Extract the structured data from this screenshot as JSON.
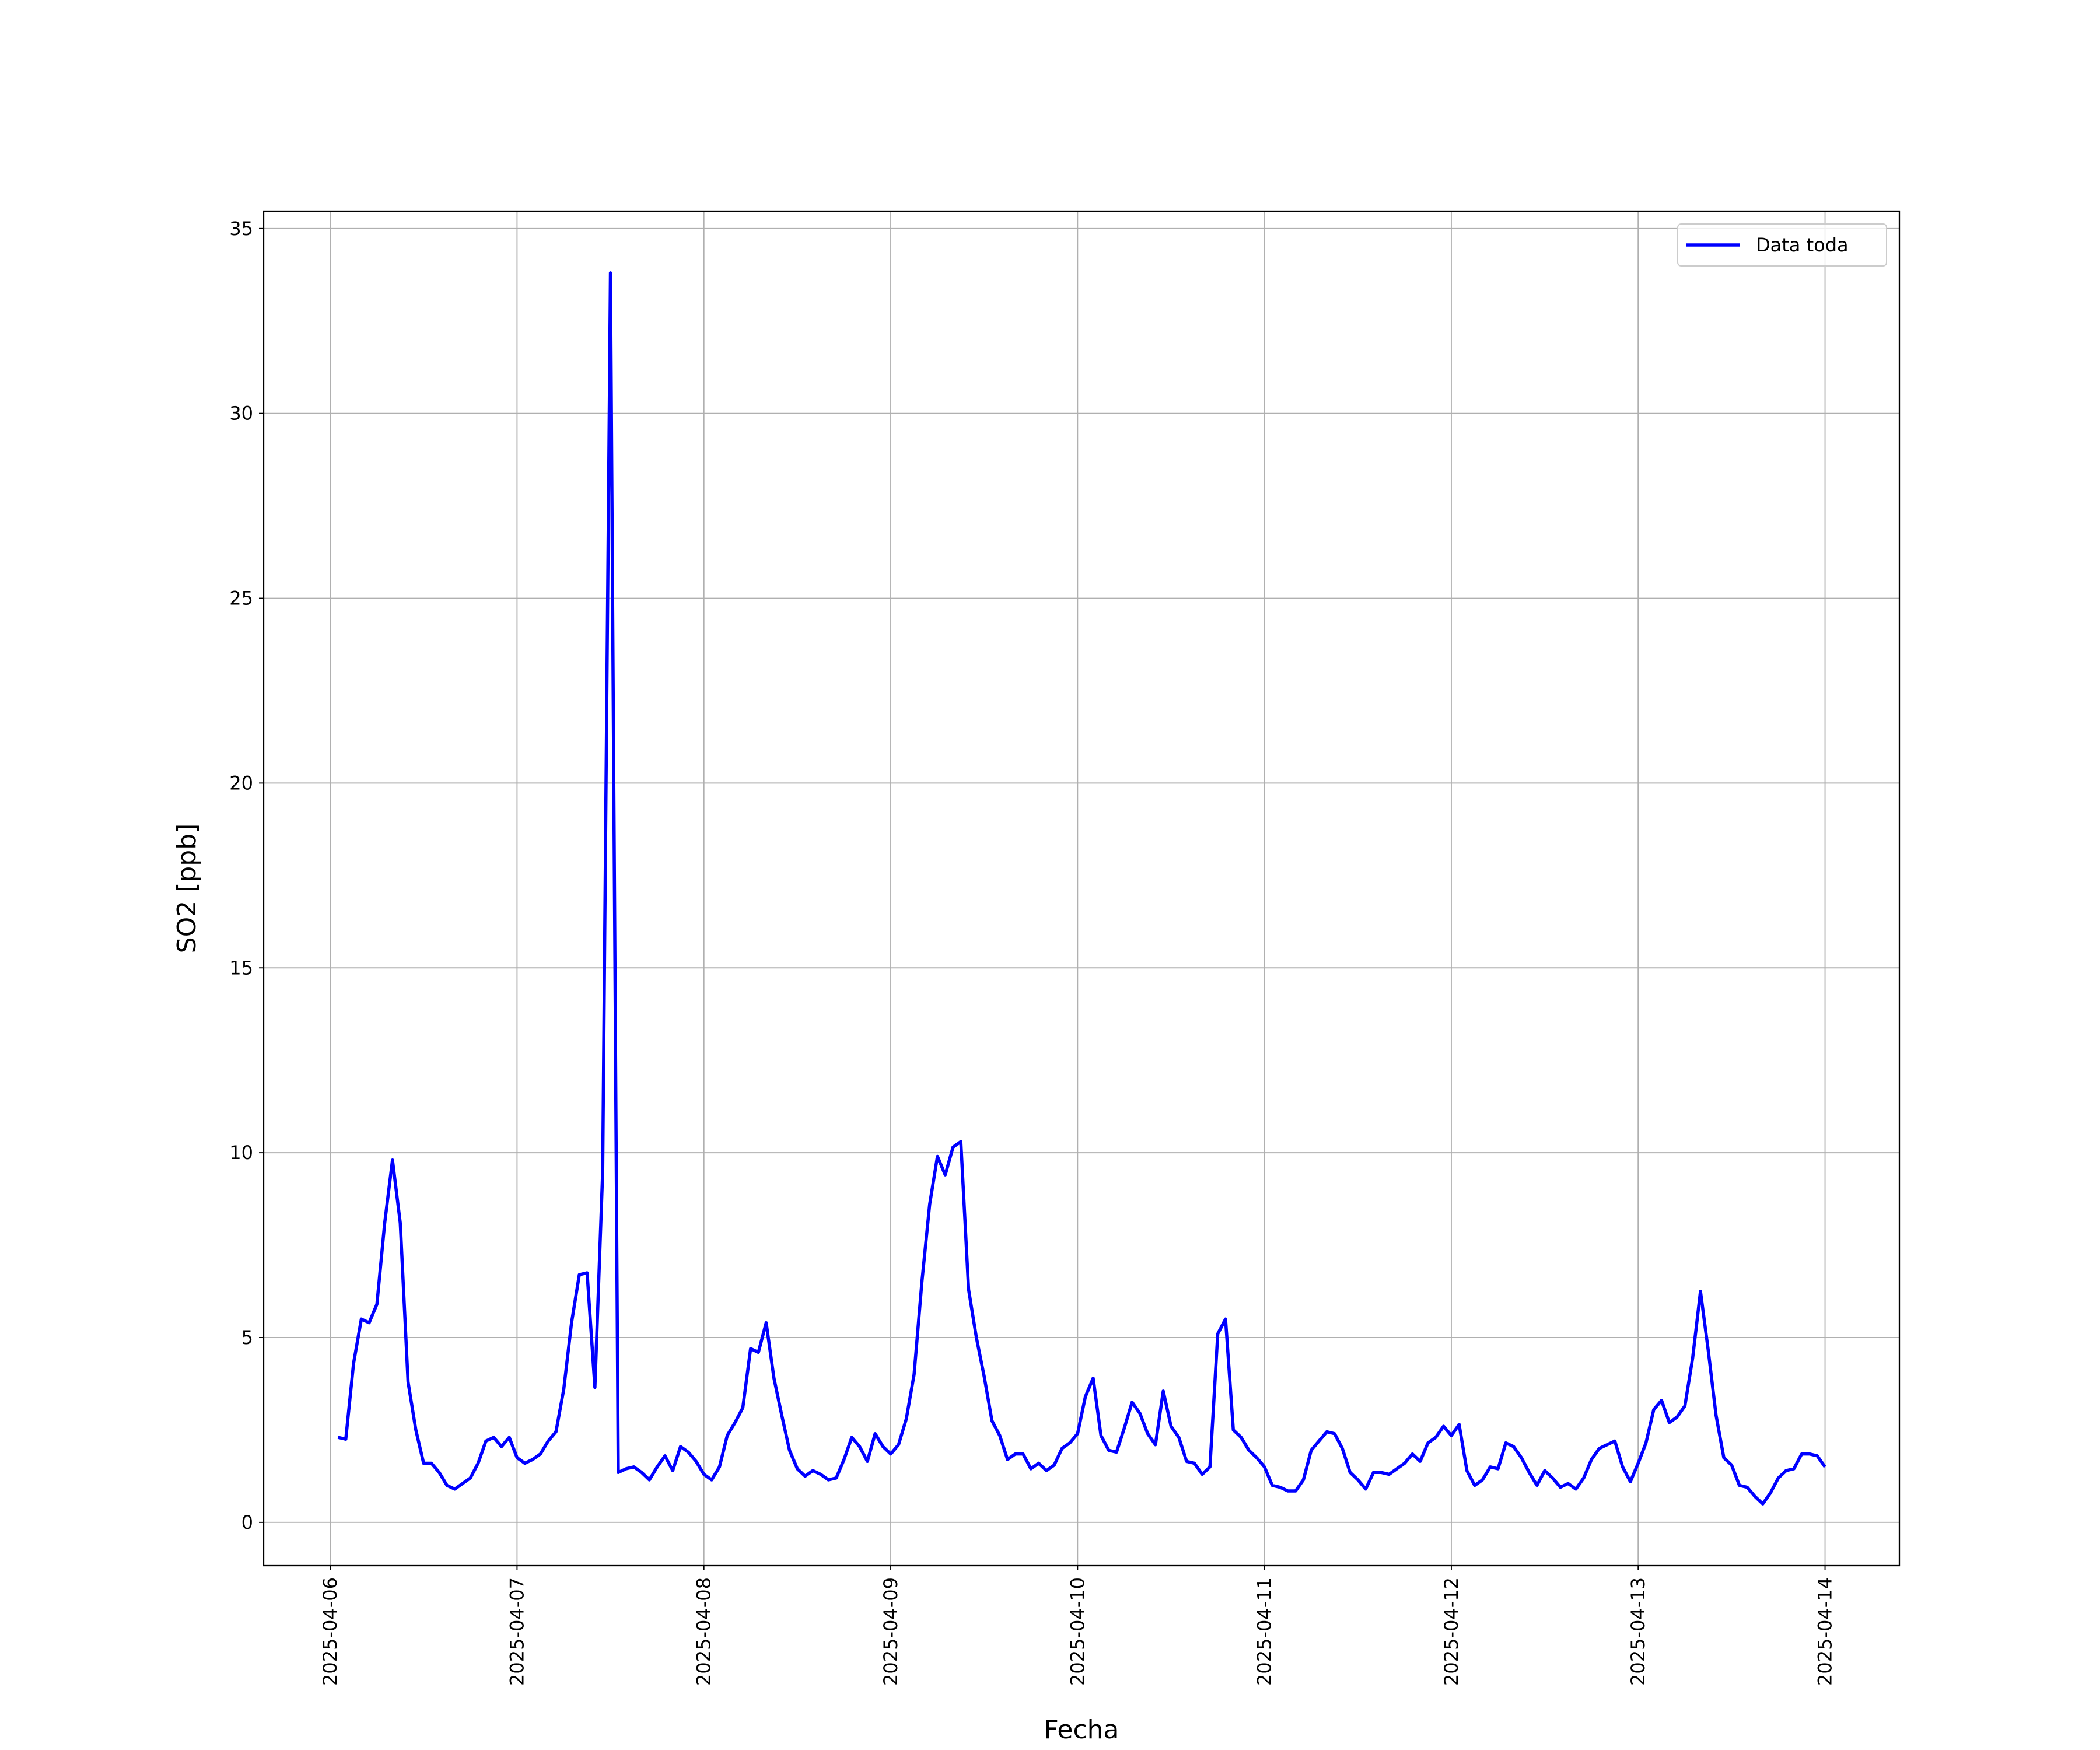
{
  "chart_data": {
    "type": "line",
    "xlabel": "Fecha",
    "ylabel": "SO2 [ppb]",
    "x": [
      "2025-04-06 01:00",
      "2025-04-06 02:00",
      "2025-04-06 03:00",
      "2025-04-06 04:00",
      "2025-04-06 05:00",
      "2025-04-06 06:00",
      "2025-04-06 07:00",
      "2025-04-06 08:00",
      "2025-04-06 09:00",
      "2025-04-06 10:00",
      "2025-04-06 11:00",
      "2025-04-06 12:00",
      "2025-04-06 13:00",
      "2025-04-06 14:00",
      "2025-04-06 15:00",
      "2025-04-06 16:00",
      "2025-04-06 17:00",
      "2025-04-06 18:00",
      "2025-04-06 19:00",
      "2025-04-06 20:00",
      "2025-04-06 21:00",
      "2025-04-06 22:00",
      "2025-04-06 23:00",
      "2025-04-07 00:00",
      "2025-04-07 01:00",
      "2025-04-07 02:00",
      "2025-04-07 03:00",
      "2025-04-07 04:00",
      "2025-04-07 05:00",
      "2025-04-07 06:00",
      "2025-04-07 07:00",
      "2025-04-07 08:00",
      "2025-04-07 09:00",
      "2025-04-07 10:00",
      "2025-04-07 11:00",
      "2025-04-07 12:00",
      "2025-04-07 13:00",
      "2025-04-07 14:00",
      "2025-04-07 15:00",
      "2025-04-07 16:00",
      "2025-04-07 17:00",
      "2025-04-07 18:00",
      "2025-04-07 19:00",
      "2025-04-07 20:00",
      "2025-04-07 21:00",
      "2025-04-07 22:00",
      "2025-04-07 23:00",
      "2025-04-08 00:00",
      "2025-04-08 01:00",
      "2025-04-08 02:00",
      "2025-04-08 03:00",
      "2025-04-08 04:00",
      "2025-04-08 05:00",
      "2025-04-08 06:00",
      "2025-04-08 07:00",
      "2025-04-08 08:00",
      "2025-04-08 09:00",
      "2025-04-08 10:00",
      "2025-04-08 11:00",
      "2025-04-08 12:00",
      "2025-04-08 13:00",
      "2025-04-08 14:00",
      "2025-04-08 15:00",
      "2025-04-08 16:00",
      "2025-04-08 17:00",
      "2025-04-08 18:00",
      "2025-04-08 19:00",
      "2025-04-08 20:00",
      "2025-04-08 21:00",
      "2025-04-08 22:00",
      "2025-04-08 23:00",
      "2025-04-09 00:00",
      "2025-04-09 01:00",
      "2025-04-09 02:00",
      "2025-04-09 03:00",
      "2025-04-09 04:00",
      "2025-04-09 05:00",
      "2025-04-09 06:00",
      "2025-04-09 07:00",
      "2025-04-09 08:00",
      "2025-04-09 09:00",
      "2025-04-09 10:00",
      "2025-04-09 11:00",
      "2025-04-09 12:00",
      "2025-04-09 13:00",
      "2025-04-09 14:00",
      "2025-04-09 15:00",
      "2025-04-09 16:00",
      "2025-04-09 17:00",
      "2025-04-09 18:00",
      "2025-04-09 19:00",
      "2025-04-09 20:00",
      "2025-04-09 21:00",
      "2025-04-09 22:00",
      "2025-04-09 23:00",
      "2025-04-10 00:00",
      "2025-04-10 01:00",
      "2025-04-10 02:00",
      "2025-04-10 03:00",
      "2025-04-10 04:00",
      "2025-04-10 05:00",
      "2025-04-10 06:00",
      "2025-04-10 07:00",
      "2025-04-10 08:00",
      "2025-04-10 09:00",
      "2025-04-10 10:00",
      "2025-04-10 11:00",
      "2025-04-10 12:00",
      "2025-04-10 13:00",
      "2025-04-10 14:00",
      "2025-04-10 15:00",
      "2025-04-10 16:00",
      "2025-04-10 17:00",
      "2025-04-10 18:00",
      "2025-04-10 19:00",
      "2025-04-10 20:00",
      "2025-04-10 21:00",
      "2025-04-10 22:00",
      "2025-04-10 23:00",
      "2025-04-11 00:00",
      "2025-04-11 01:00",
      "2025-04-11 02:00",
      "2025-04-11 03:00",
      "2025-04-11 04:00",
      "2025-04-11 05:00",
      "2025-04-11 06:00",
      "2025-04-11 07:00",
      "2025-04-11 08:00",
      "2025-04-11 09:00",
      "2025-04-11 10:00",
      "2025-04-11 11:00",
      "2025-04-11 12:00",
      "2025-04-11 13:00",
      "2025-04-11 14:00",
      "2025-04-11 15:00",
      "2025-04-11 16:00",
      "2025-04-11 17:00",
      "2025-04-11 18:00",
      "2025-04-11 19:00",
      "2025-04-11 20:00",
      "2025-04-11 21:00",
      "2025-04-11 22:00",
      "2025-04-11 23:00",
      "2025-04-12 00:00",
      "2025-04-12 01:00",
      "2025-04-12 02:00",
      "2025-04-12 03:00",
      "2025-04-12 04:00",
      "2025-04-12 05:00",
      "2025-04-12 06:00",
      "2025-04-12 07:00",
      "2025-04-12 08:00",
      "2025-04-12 09:00",
      "2025-04-12 10:00",
      "2025-04-12 11:00",
      "2025-04-12 12:00",
      "2025-04-12 13:00",
      "2025-04-12 14:00",
      "2025-04-12 15:00",
      "2025-04-12 16:00",
      "2025-04-12 17:00",
      "2025-04-12 18:00",
      "2025-04-12 19:00",
      "2025-04-12 20:00",
      "2025-04-12 21:00",
      "2025-04-12 22:00",
      "2025-04-12 23:00",
      "2025-04-13 00:00",
      "2025-04-13 01:00",
      "2025-04-13 02:00",
      "2025-04-13 03:00",
      "2025-04-13 04:00",
      "2025-04-13 05:00",
      "2025-04-13 06:00",
      "2025-04-13 07:00",
      "2025-04-13 08:00",
      "2025-04-13 09:00",
      "2025-04-13 10:00",
      "2025-04-13 11:00",
      "2025-04-13 12:00",
      "2025-04-13 13:00",
      "2025-04-13 14:00",
      "2025-04-13 15:00",
      "2025-04-13 16:00",
      "2025-04-13 17:00",
      "2025-04-13 18:00",
      "2025-04-13 19:00",
      "2025-04-13 20:00",
      "2025-04-13 21:00",
      "2025-04-13 22:00",
      "2025-04-13 23:00",
      "2025-04-14 00:00"
    ],
    "series": [
      {
        "name": "Data toda",
        "color": "#0000ff",
        "values": [
          2.3,
          2.25,
          4.3,
          5.5,
          5.4,
          5.9,
          8.1,
          9.8,
          8.1,
          3.8,
          2.5,
          1.6,
          1.6,
          1.35,
          1.0,
          0.9,
          1.05,
          1.2,
          1.6,
          2.2,
          2.3,
          2.05,
          2.3,
          1.75,
          1.6,
          1.7,
          1.85,
          2.2,
          2.45,
          3.6,
          5.4,
          6.7,
          6.75,
          3.65,
          9.5,
          33.8,
          1.35,
          1.45,
          1.5,
          1.35,
          1.15,
          1.5,
          1.8,
          1.4,
          2.05,
          1.9,
          1.65,
          1.3,
          1.15,
          1.5,
          2.35,
          2.7,
          3.1,
          4.7,
          4.6,
          5.4,
          3.9,
          2.9,
          1.95,
          1.45,
          1.25,
          1.4,
          1.3,
          1.15,
          1.2,
          1.7,
          2.3,
          2.05,
          1.65,
          2.4,
          2.05,
          1.85,
          2.1,
          2.8,
          4.0,
          6.5,
          8.6,
          9.9,
          9.4,
          10.15,
          10.3,
          6.3,
          5.0,
          3.95,
          2.75,
          2.35,
          1.7,
          1.85,
          1.85,
          1.45,
          1.6,
          1.4,
          1.55,
          2.0,
          2.15,
          2.4,
          3.4,
          3.9,
          2.35,
          1.95,
          1.9,
          2.55,
          3.25,
          2.95,
          2.4,
          2.1,
          3.55,
          2.6,
          2.3,
          1.65,
          1.6,
          1.3,
          1.5,
          5.1,
          5.5,
          2.5,
          2.3,
          1.95,
          1.75,
          1.5,
          1.0,
          0.95,
          0.85,
          0.85,
          1.15,
          1.95,
          2.2,
          2.45,
          2.4,
          2.0,
          1.35,
          1.15,
          0.9,
          1.35,
          1.35,
          1.3,
          1.45,
          1.6,
          1.85,
          1.65,
          2.15,
          2.3,
          2.6,
          2.35,
          2.65,
          1.4,
          1.0,
          1.15,
          1.5,
          1.45,
          2.15,
          2.05,
          1.75,
          1.35,
          1.0,
          1.4,
          1.2,
          0.95,
          1.05,
          0.9,
          1.2,
          1.7,
          2.0,
          2.1,
          2.2,
          1.5,
          1.1,
          1.6,
          2.15,
          3.05,
          3.3,
          2.7,
          2.85,
          3.15,
          4.45,
          6.25,
          4.65,
          2.9,
          1.75,
          1.55,
          1.0,
          0.95,
          0.7,
          0.5,
          0.8,
          1.2,
          1.4,
          1.45,
          1.85,
          1.85,
          1.8,
          1.5
        ]
      }
    ],
    "xlim": [
      "2025-04-05 15:27",
      "2025-04-14 09:33"
    ],
    "xticks": [
      "2025-04-06",
      "2025-04-07",
      "2025-04-08",
      "2025-04-09",
      "2025-04-10",
      "2025-04-11",
      "2025-04-12",
      "2025-04-13",
      "2025-04-14"
    ],
    "ylim": [
      -1.17,
      35.47
    ],
    "yticks": [
      0,
      5,
      10,
      15,
      20,
      25,
      30,
      35
    ],
    "grid": true,
    "legend": "upper right"
  }
}
